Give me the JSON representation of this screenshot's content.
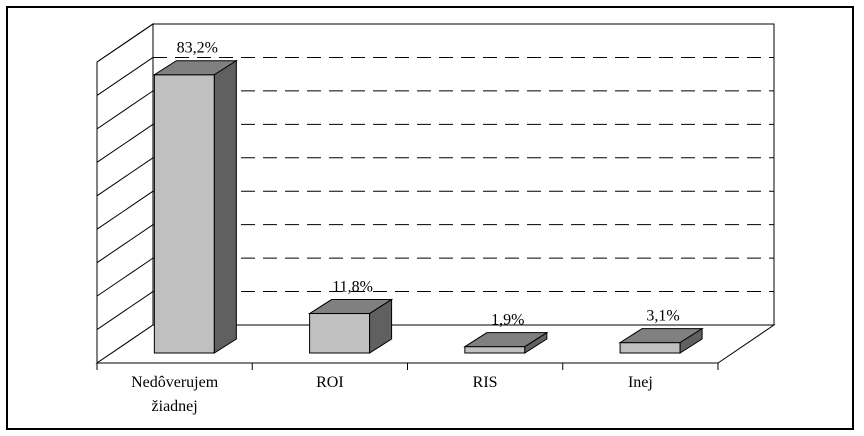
{
  "chart_data": {
    "type": "bar",
    "style": "3d-column",
    "categories": [
      [
        "Nedôverujem",
        "žiadnej"
      ],
      [
        "ROI"
      ],
      [
        "RIS"
      ],
      [
        "Inej"
      ]
    ],
    "values": [
      83.2,
      11.8,
      1.9,
      3.1
    ],
    "value_labels": [
      "83,2%",
      "11,8%",
      "1,9%",
      "3,1%"
    ],
    "title": "",
    "xlabel": "",
    "ylabel": "",
    "ylim": [
      0,
      90
    ],
    "gridlines": "dashed",
    "legend": "none",
    "colors": {
      "bar_front": "#c0c0c0",
      "bar_top": "#808080",
      "bar_side": "#606060",
      "grid": "#000000",
      "border": "#000000"
    }
  }
}
